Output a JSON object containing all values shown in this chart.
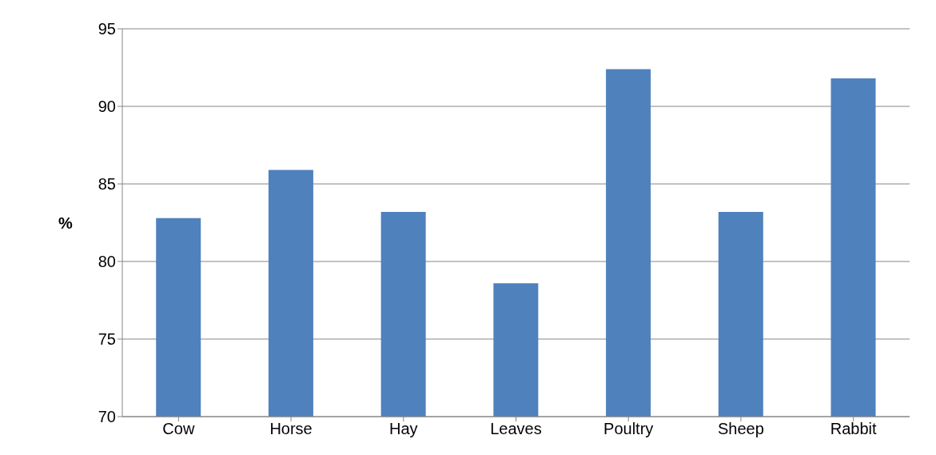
{
  "chart_data": {
    "type": "bar",
    "ylabel": "%",
    "categories": [
      "Cow",
      "Horse",
      "Hay",
      "Leaves",
      "Poultry",
      "Sheep",
      "Rabbit"
    ],
    "values": [
      82.8,
      85.9,
      83.2,
      78.6,
      92.4,
      83.2,
      91.8
    ],
    "color": "#4f81bd",
    "ylim": [
      70,
      95
    ],
    "yticks": [
      70,
      75,
      80,
      85,
      90,
      95
    ],
    "grid": "y"
  }
}
